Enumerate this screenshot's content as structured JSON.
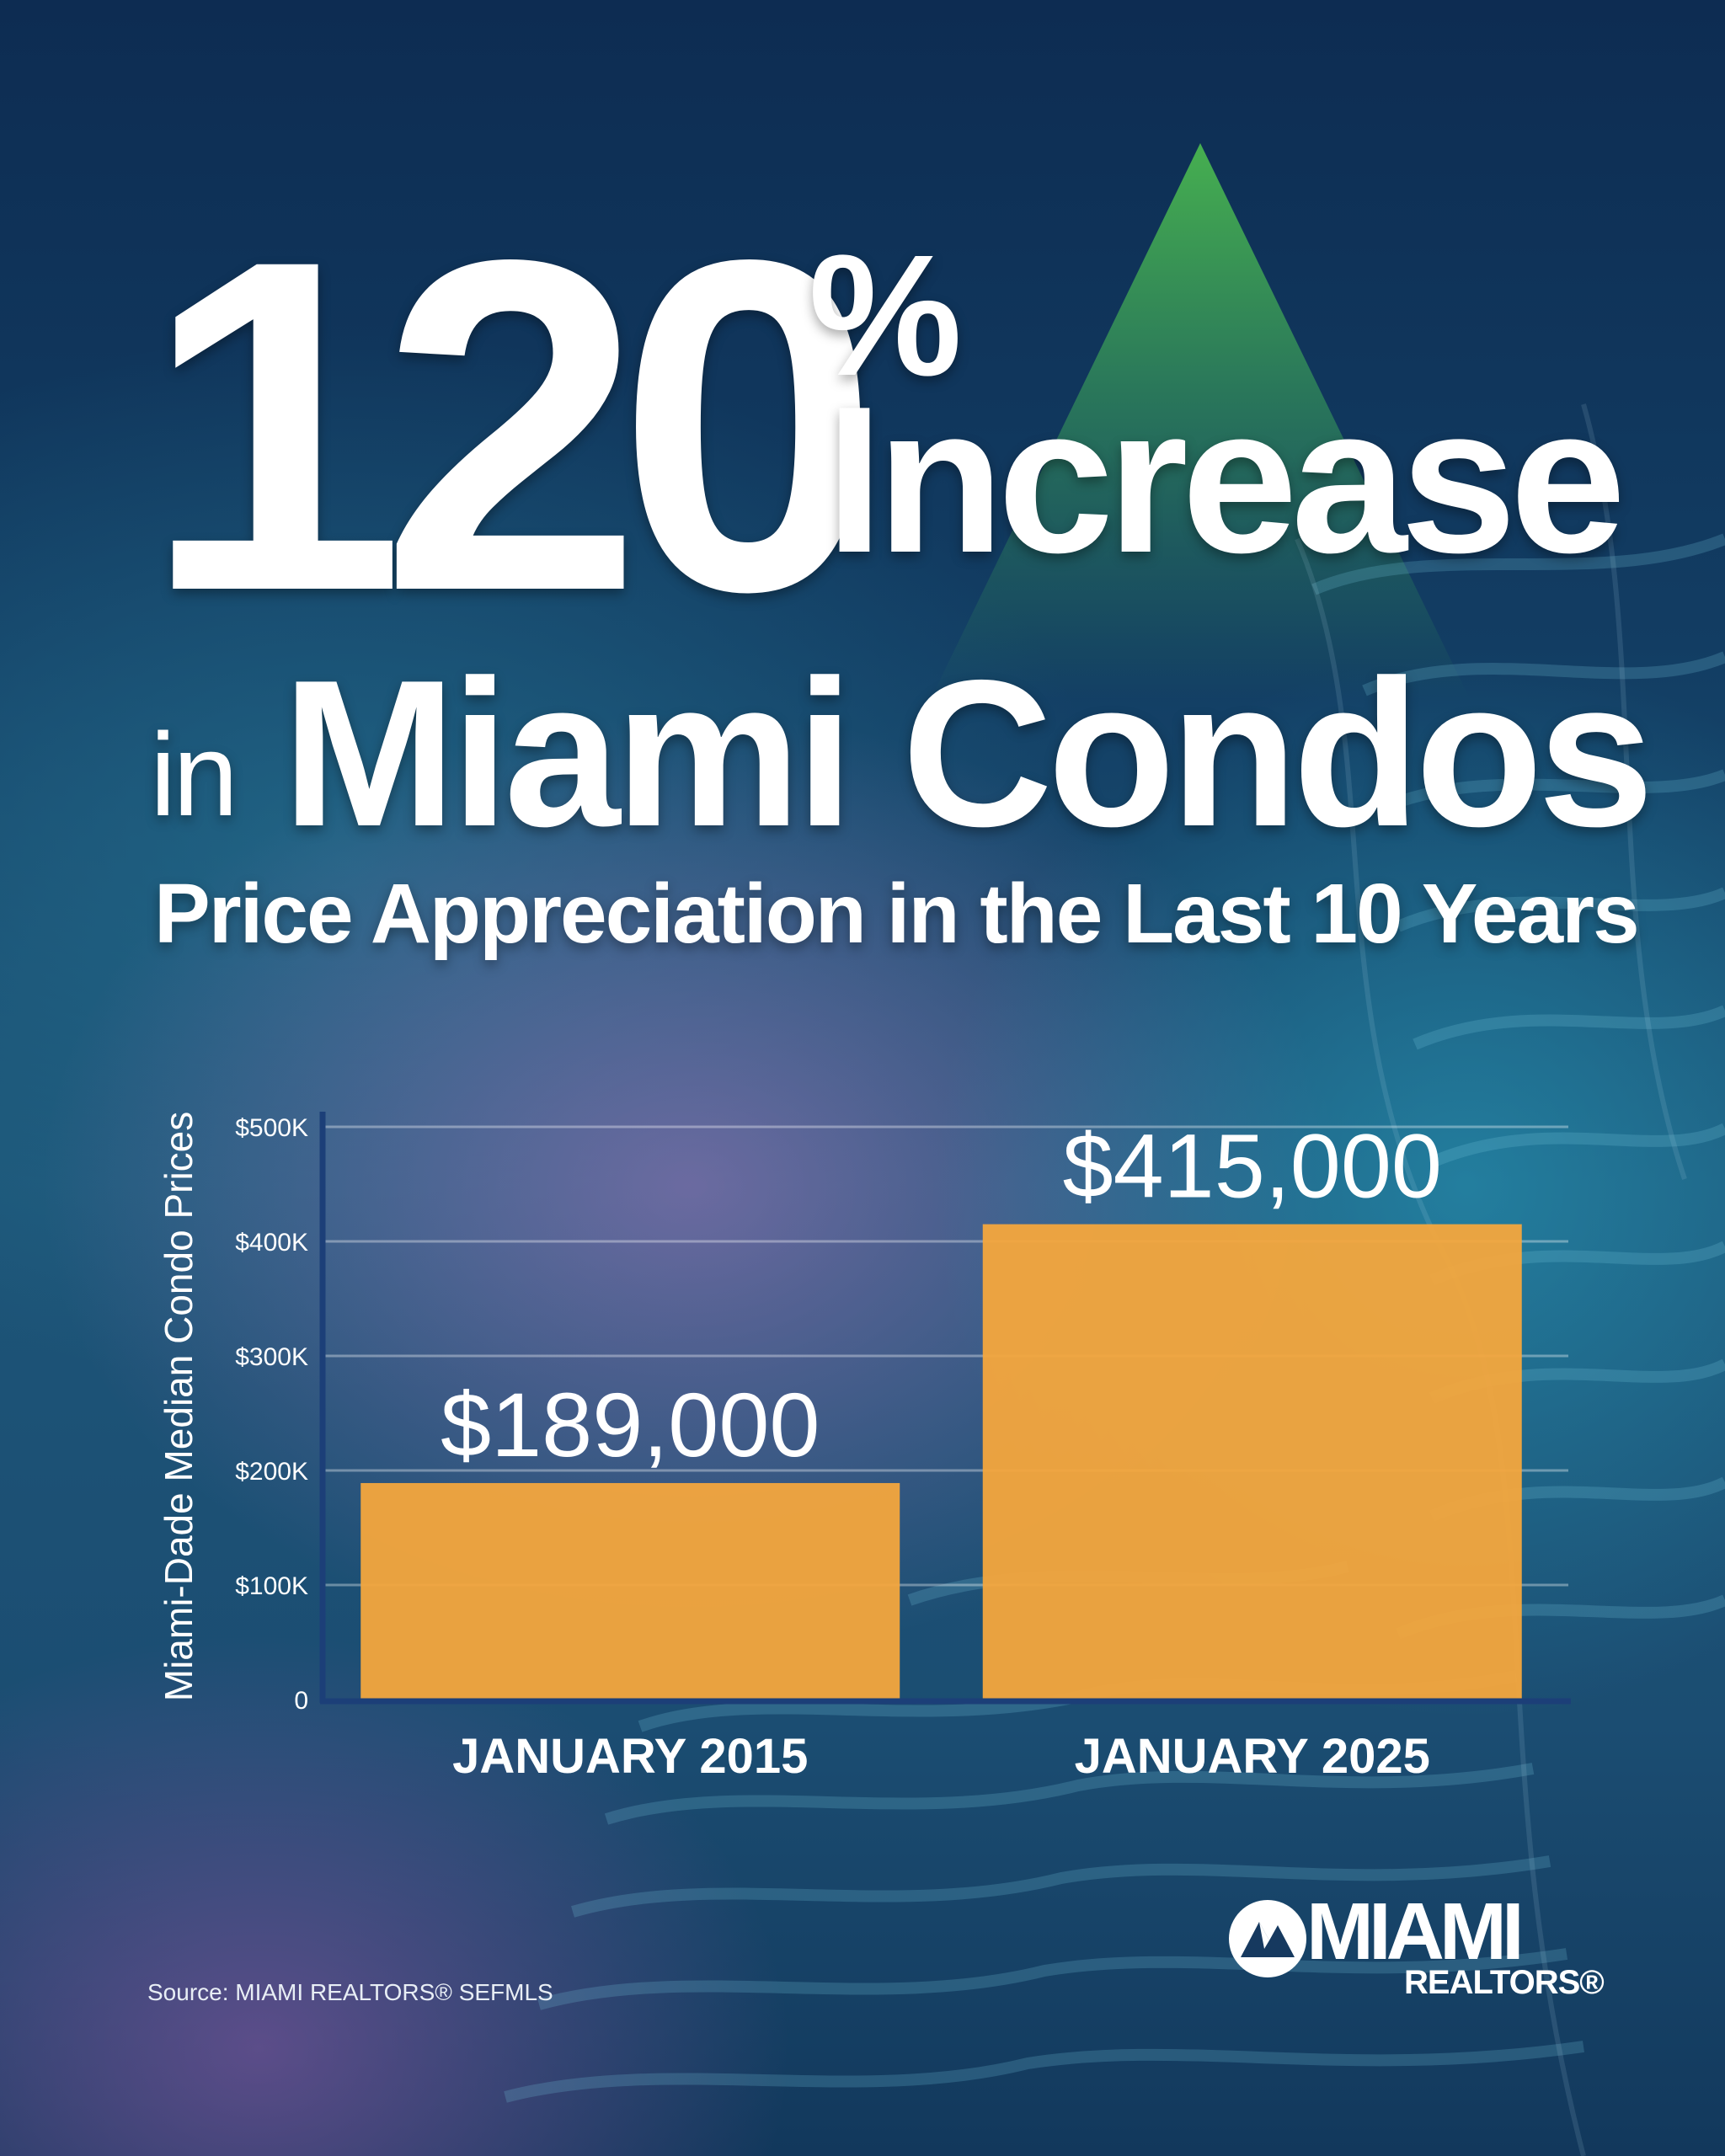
{
  "headline": {
    "number": "120",
    "percent": "%",
    "increase": "Increase",
    "in": "in",
    "location": "Miami Condos",
    "subtitle": "Price Appreciation in the Last 10 Years"
  },
  "chart_data": {
    "type": "bar",
    "categories": [
      "JANUARY 2015",
      "JANUARY 2025"
    ],
    "values": [
      189000,
      415000
    ],
    "value_labels": [
      "$189,000",
      "$415,000"
    ],
    "ylabel": "Miami-Dade Median Condo Prices",
    "xlabel": "",
    "ylim": [
      0,
      500000
    ],
    "yticks": [
      0,
      100000,
      200000,
      300000,
      400000,
      500000
    ],
    "ytick_labels": [
      "0",
      "$100K",
      "$200K",
      "$300K",
      "$400K",
      "$500K"
    ],
    "grid": true,
    "bar_color": "#f4a73d",
    "axis_color": "#1c3f78"
  },
  "footer": {
    "source": "Source: MIAMI REALTORS® SEFMLS",
    "logo_word": "MIAMI",
    "logo_sub": "REALTORS®"
  },
  "colors": {
    "triangle": "#46af50",
    "bar": "#f4a73d",
    "text": "#ffffff"
  }
}
